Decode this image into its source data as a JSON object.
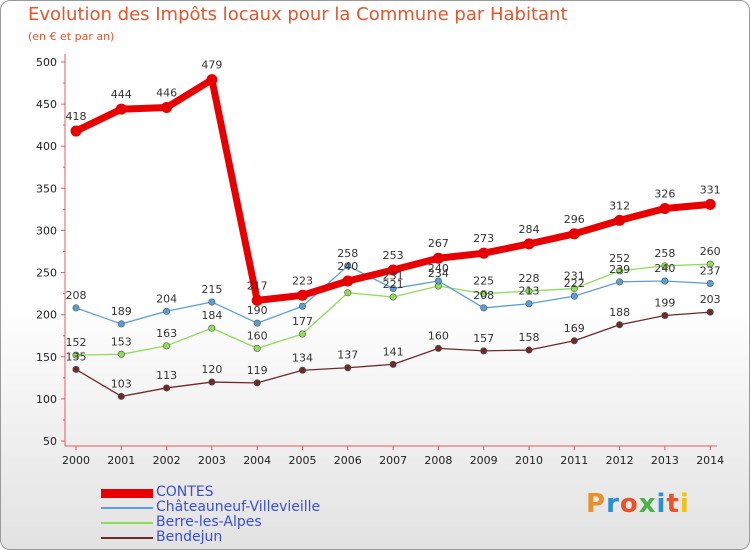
{
  "title": "Evolution des Impôts locaux pour la Commune par Habitant",
  "subtitle": "(en € et par an)",
  "logo": {
    "text": "Proxiti",
    "letter_colors": [
      "#e8912a",
      "#2d8fd1",
      "#e8532a",
      "#4bb248",
      "#2d8fd1",
      "#e8532a",
      "#f2c20d"
    ]
  },
  "chart_data": {
    "type": "line",
    "title": "Evolution des Impôts locaux pour la Commune par Habitant",
    "subtitle": "(en € et par an)",
    "xlabel": "",
    "ylabel": "",
    "ylim": [
      50,
      500
    ],
    "ytick_step": 50,
    "grid": false,
    "legend_position": "bottom-left",
    "x": [
      "2000",
      "2001",
      "2002",
      "2003",
      "2004",
      "2005",
      "2006",
      "2007",
      "2008",
      "2009",
      "2010",
      "2011",
      "2012",
      "2013",
      "2014"
    ],
    "series": [
      {
        "name": "CONTES",
        "color": "#e80000",
        "width": "thick",
        "values": [
          418,
          444,
          446,
          479,
          217,
          223,
          240,
          253,
          267,
          273,
          284,
          296,
          312,
          326,
          331
        ]
      },
      {
        "name": "Châteauneuf-Villevieille",
        "color": "#5b9ed6",
        "width": "thin",
        "values": [
          208,
          189,
          204,
          215,
          190,
          210,
          258,
          231,
          240,
          208,
          213,
          222,
          239,
          240,
          237
        ],
        "labels": [
          "208",
          "189",
          "204",
          "215",
          "190",
          "",
          "258",
          "231",
          "240",
          "208",
          "213",
          "222",
          "239",
          "240",
          "237"
        ]
      },
      {
        "name": "Berre-les-Alpes",
        "color": "#8fdc5a",
        "width": "thin",
        "values": [
          152,
          153,
          163,
          184,
          160,
          177,
          226,
          221,
          234,
          225,
          228,
          231,
          252,
          258,
          260
        ],
        "labels": [
          "152",
          "153",
          "163",
          "184",
          "160",
          "177",
          "",
          "221",
          "234",
          "225",
          "228",
          "231",
          "252",
          "258",
          "260"
        ]
      },
      {
        "name": "Bendejun",
        "color": "#6e2a2a",
        "width": "thin",
        "values": [
          135,
          103,
          113,
          120,
          119,
          134,
          137,
          141,
          160,
          157,
          158,
          169,
          188,
          199,
          203
        ]
      }
    ]
  }
}
